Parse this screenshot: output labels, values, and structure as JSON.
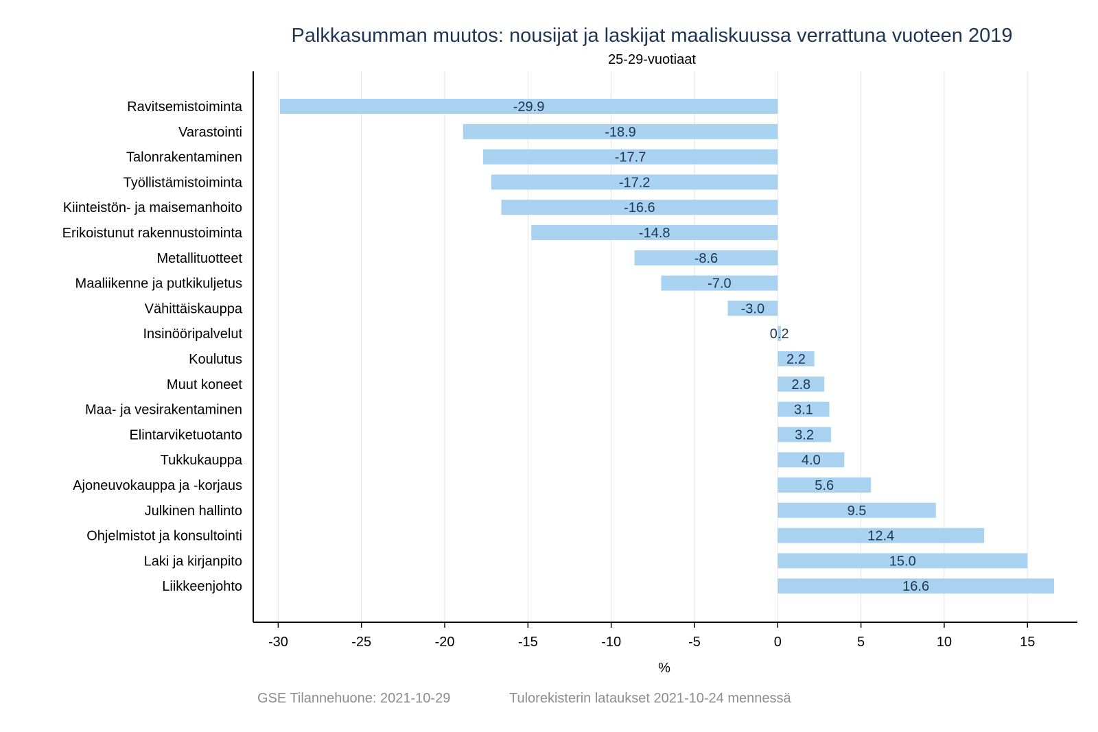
{
  "chart_data": {
    "type": "bar",
    "orientation": "horizontal",
    "title": "Palkkasumman muutos: nousijat ja laskijat maaliskuussa verrattuna vuoteen 2019",
    "subtitle": "25-29-vuotiaat",
    "xlabel": "%",
    "ylabel": "",
    "xlim": [
      -31.5,
      18
    ],
    "xticks": [
      -30,
      -25,
      -20,
      -15,
      -10,
      -5,
      0,
      5,
      10,
      15
    ],
    "grid": "vertical",
    "bar_color": "#a8d2f0",
    "categories": [
      "Ravitsemistoiminta",
      "Varastointi",
      "Talonrakentaminen",
      "Työllistämistoiminta",
      "Kiinteistön- ja maisemanhoito",
      "Erikoistunut rakennustoiminta",
      "Metallituotteet",
      "Maaliikenne ja putkikuljetus",
      "Vähittäiskauppa",
      "Insinööripalvelut",
      "Koulutus",
      "Muut koneet",
      "Maa- ja vesirakentaminen",
      "Elintarviketuotanto",
      "Tukkukauppa",
      "Ajoneuvokauppa ja -korjaus",
      "Julkinen hallinto",
      "Ohjelmistot ja konsultointi",
      "Laki ja kirjanpito",
      "Liikkeenjohto"
    ],
    "values": [
      -29.9,
      -18.9,
      -17.7,
      -17.2,
      -16.6,
      -14.8,
      -8.6,
      -7.0,
      -3.0,
      0.2,
      2.2,
      2.8,
      3.1,
      3.2,
      4.0,
      5.6,
      9.5,
      12.4,
      15.0,
      16.6
    ],
    "value_labels": [
      "-29.9",
      "-18.9",
      "-17.7",
      "-17.2",
      "-16.6",
      "-14.8",
      "-8.6",
      "-7.0",
      "-3.0",
      "0.2",
      "2.2",
      "2.8",
      "3.1",
      "3.2",
      "4.0",
      "5.6",
      "9.5",
      "12.4",
      "15.0",
      "16.6"
    ]
  },
  "footer": {
    "source": "GSE Tilannehuone: 2021-10-29",
    "note": "Tulorekisterin lataukset 2021-10-24 mennessä"
  }
}
